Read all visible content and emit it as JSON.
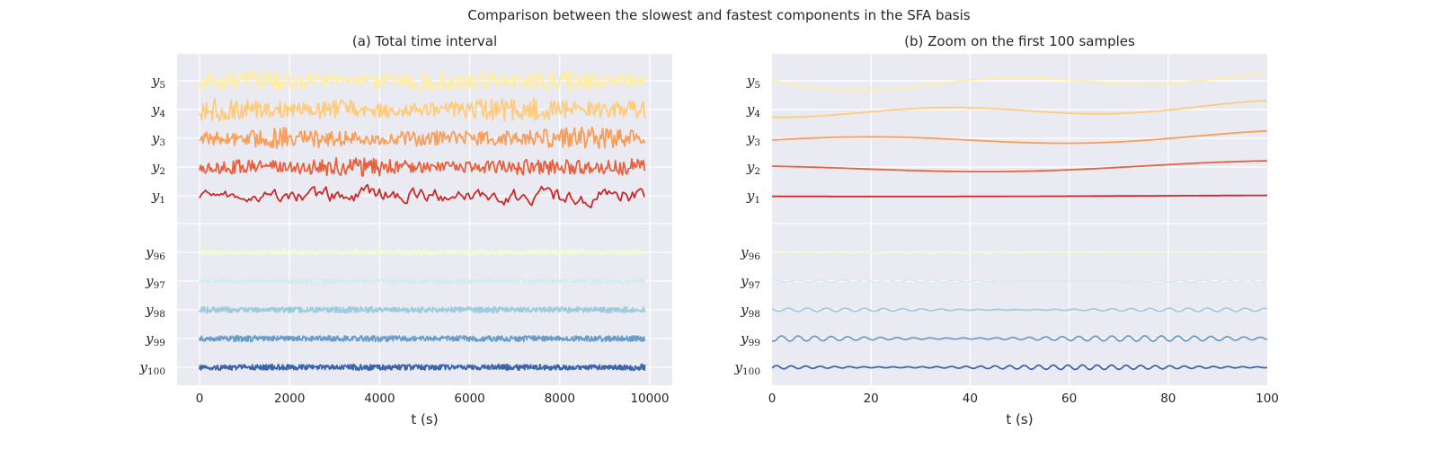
{
  "chart_data": {
    "suptitle": "Comparison between the slowest and fastest components in the SFA basis",
    "charts": [
      {
        "type": "line",
        "title": "(a) Total time interval",
        "xlabel": "t (s)",
        "xlim": [
          -500,
          10500
        ],
        "xticks": [
          0,
          2000,
          4000,
          6000,
          8000,
          10000
        ],
        "x_range": [
          0,
          9900
        ],
        "grid": true
      },
      {
        "type": "line",
        "title": "(b) Zoom on the first 100 samples",
        "xlabel": "t (s)",
        "xlim": [
          0,
          100
        ],
        "xticks": [
          0,
          20,
          40,
          60,
          80,
          100
        ],
        "x_range": [
          0,
          100
        ],
        "grid": true
      }
    ],
    "series": [
      {
        "var": "y",
        "sub": "5",
        "color": "#ffeda0"
      },
      {
        "var": "y",
        "sub": "4",
        "color": "#fecc7c"
      },
      {
        "var": "y",
        "sub": "3",
        "color": "#f99d59"
      },
      {
        "var": "y",
        "sub": "2",
        "color": "#e9603f"
      },
      {
        "var": "y",
        "sub": "1",
        "color": "#cc2a2a"
      },
      {
        "var": "y",
        "sub": "96",
        "color": "#f4fad4"
      },
      {
        "var": "y",
        "sub": "97",
        "color": "#d3ecf0"
      },
      {
        "var": "y",
        "sub": "98",
        "color": "#9cccde"
      },
      {
        "var": "y",
        "sub": "99",
        "color": "#6a9dc9"
      },
      {
        "var": "y",
        "sub": "100",
        "color": "#3c65aa"
      }
    ],
    "style": {
      "background": "#eaeaf2",
      "gridline": "#ffffff"
    }
  }
}
